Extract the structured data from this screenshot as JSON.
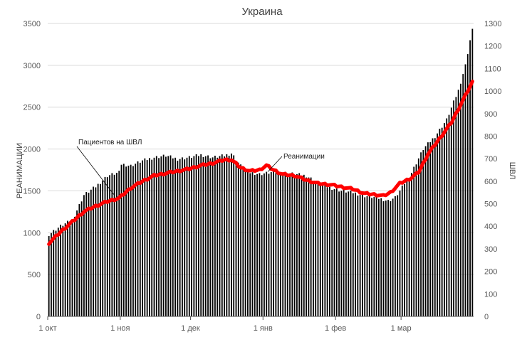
{
  "chart_data": {
    "type": "bar",
    "title": "Украина",
    "ylabel_left": "РЕАНИМАЦИИ",
    "ylabel_right": "ШВЛ",
    "ylim_left": [
      0,
      3500
    ],
    "ylim_right": [
      0,
      1300
    ],
    "yticks_left": [
      0,
      500,
      1000,
      1500,
      2000,
      2500,
      3000,
      3500
    ],
    "yticks_right": [
      0,
      100,
      200,
      300,
      400,
      500,
      600,
      700,
      800,
      900,
      1000,
      1100,
      1200,
      1300
    ],
    "x_tick_labels": [
      "1 окт",
      "1 ноя",
      "1 дек",
      "1 янв",
      "1 фев",
      "1 мар"
    ],
    "x_tick_index": [
      0,
      31,
      61,
      92,
      123,
      151
    ],
    "num_days": 182,
    "grid": "horizontal",
    "series": [
      {
        "name": "Реанимации",
        "type": "bar",
        "axis": "left",
        "color": "#000000",
        "anchors": [
          [
            0,
            980
          ],
          [
            5,
            1080
          ],
          [
            10,
            1150
          ],
          [
            15,
            1450
          ],
          [
            20,
            1550
          ],
          [
            25,
            1680
          ],
          [
            30,
            1720
          ],
          [
            31,
            1820
          ],
          [
            35,
            1800
          ],
          [
            40,
            1860
          ],
          [
            45,
            1900
          ],
          [
            50,
            1920
          ],
          [
            55,
            1880
          ],
          [
            60,
            1900
          ],
          [
            65,
            1930
          ],
          [
            70,
            1900
          ],
          [
            75,
            1920
          ],
          [
            78,
            1950
          ],
          [
            82,
            1800
          ],
          [
            86,
            1720
          ],
          [
            90,
            1700
          ],
          [
            95,
            1720
          ],
          [
            100,
            1720
          ],
          [
            105,
            1700
          ],
          [
            110,
            1680
          ],
          [
            115,
            1600
          ],
          [
            120,
            1540
          ],
          [
            125,
            1500
          ],
          [
            130,
            1480
          ],
          [
            135,
            1440
          ],
          [
            140,
            1420
          ],
          [
            145,
            1380
          ],
          [
            148,
            1420
          ],
          [
            150,
            1500
          ],
          [
            155,
            1720
          ],
          [
            160,
            2000
          ],
          [
            165,
            2150
          ],
          [
            170,
            2350
          ],
          [
            175,
            2700
          ],
          [
            178,
            3000
          ],
          [
            180,
            3300
          ],
          [
            181,
            3420
          ]
        ]
      },
      {
        "name": "Пациентов на ШВЛ",
        "type": "line",
        "axis": "right",
        "color": "#ff0000",
        "anchors": [
          [
            0,
            325
          ],
          [
            5,
            375
          ],
          [
            10,
            420
          ],
          [
            15,
            465
          ],
          [
            20,
            490
          ],
          [
            25,
            510
          ],
          [
            30,
            525
          ],
          [
            35,
            570
          ],
          [
            40,
            600
          ],
          [
            45,
            625
          ],
          [
            50,
            635
          ],
          [
            55,
            645
          ],
          [
            60,
            655
          ],
          [
            65,
            670
          ],
          [
            70,
            680
          ],
          [
            75,
            695
          ],
          [
            78,
            695
          ],
          [
            82,
            660
          ],
          [
            86,
            645
          ],
          [
            90,
            650
          ],
          [
            93,
            670
          ],
          [
            96,
            650
          ],
          [
            100,
            630
          ],
          [
            105,
            625
          ],
          [
            110,
            605
          ],
          [
            115,
            590
          ],
          [
            120,
            585
          ],
          [
            125,
            575
          ],
          [
            130,
            565
          ],
          [
            135,
            545
          ],
          [
            140,
            540
          ],
          [
            143,
            535
          ],
          [
            146,
            550
          ],
          [
            150,
            590
          ],
          [
            155,
            615
          ],
          [
            158,
            640
          ],
          [
            162,
            720
          ],
          [
            167,
            790
          ],
          [
            172,
            860
          ],
          [
            176,
            940
          ],
          [
            179,
            1000
          ],
          [
            181,
            1040
          ]
        ]
      }
    ],
    "annotations": [
      {
        "text": "Пациентов на ШВЛ",
        "x_index": 28,
        "series": "Пациентов на ШВЛ"
      },
      {
        "text": "Реанимации",
        "x_index": 93,
        "series": "Реанимации"
      }
    ]
  }
}
